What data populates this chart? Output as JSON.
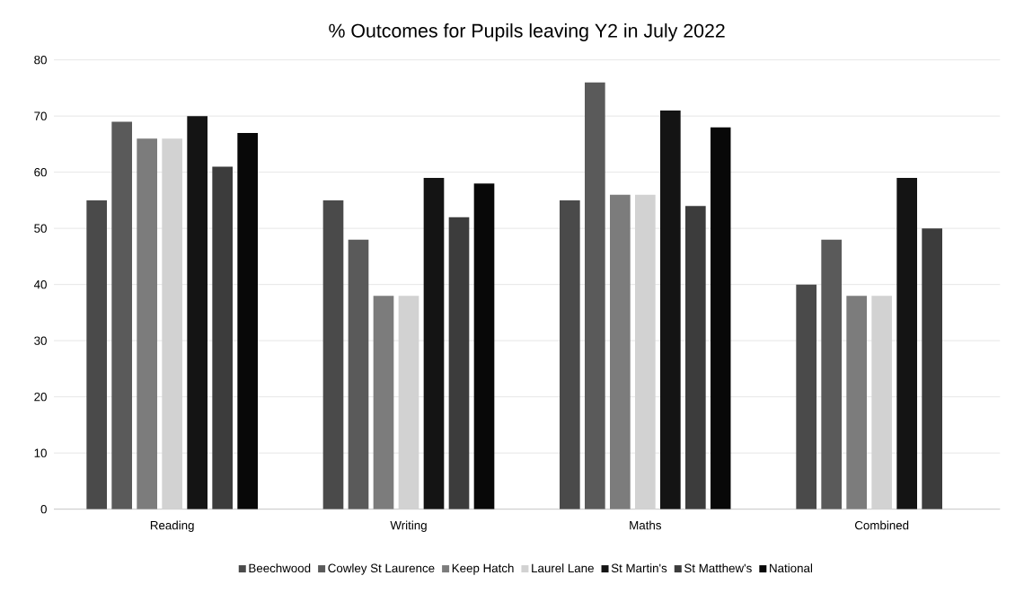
{
  "chart_data": {
    "type": "bar",
    "title": "% Outcomes for Pupils leaving Y2 in July 2022",
    "categories": [
      "Reading",
      "Writing",
      "Maths",
      "Combined"
    ],
    "series": [
      {
        "name": "Beechwood",
        "color": "#4a4a4a",
        "values": [
          55,
          55,
          55,
          40
        ]
      },
      {
        "name": "Cowley St Laurence",
        "color": "#5a5a5a",
        "values": [
          69,
          48,
          76,
          48
        ]
      },
      {
        "name": "Keep Hatch",
        "color": "#7c7c7c",
        "values": [
          66,
          38,
          56,
          38
        ]
      },
      {
        "name": "Laurel Lane",
        "color": "#d2d2d2",
        "values": [
          66,
          38,
          56,
          38
        ]
      },
      {
        "name": "St Martin's",
        "color": "#141414",
        "values": [
          70,
          59,
          71,
          59
        ]
      },
      {
        "name": "St Matthew's",
        "color": "#3c3c3c",
        "values": [
          61,
          52,
          54,
          50
        ]
      },
      {
        "name": "National",
        "color": "#080808",
        "values": [
          67,
          58,
          68,
          null
        ]
      }
    ],
    "ylim": [
      0,
      80
    ],
    "yticks": [
      0,
      10,
      20,
      30,
      40,
      50,
      60,
      70,
      80
    ],
    "grid": "y",
    "legend": "bottom"
  }
}
